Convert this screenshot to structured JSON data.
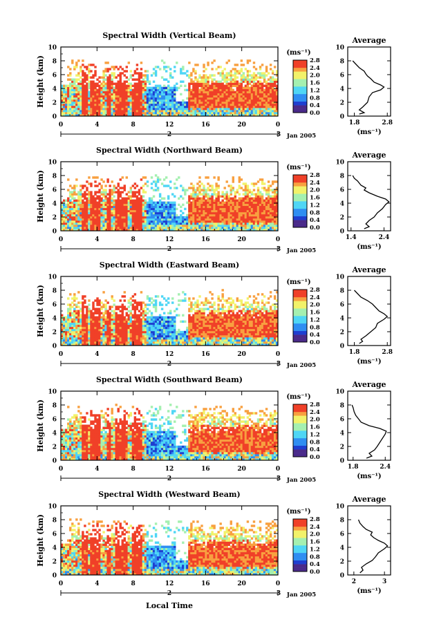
{
  "chart_data": {
    "type": "heatmap",
    "common": {
      "ylabel": "Height (km)",
      "ylim": [
        0,
        10
      ],
      "yticks": [
        "0",
        "2",
        "4",
        "6",
        "8",
        "10"
      ],
      "xlim": [
        0,
        24
      ],
      "xticks": [
        "0",
        "4",
        "8",
        "12",
        "16",
        "20",
        "0"
      ],
      "date_ticks": [
        "2",
        "3"
      ],
      "date_label": "Jan 2005",
      "xlabel": "Local Time",
      "colorbar_unit": "(ms⁻¹)",
      "colorbar_ticks": [
        "0.0",
        "0.4",
        "0.8",
        "1.2",
        "1.6",
        "2.0",
        "2.4",
        "2.8"
      ],
      "colorbar_range": [
        0,
        2.8
      ],
      "avg_title": "Average",
      "avg_unit": "(ms⁻¹)",
      "avg_yticks": [
        "0",
        "2",
        "4",
        "6",
        "8",
        "10"
      ],
      "colormap": [
        "#4a2a8a",
        "#1f3fd0",
        "#2f8ef2",
        "#4fd6f5",
        "#a4f0b0",
        "#f2f26a",
        "#f8a040",
        "#f04028"
      ]
    },
    "panels": [
      {
        "title": "Spectral Width (Vertical Beam)",
        "avg_xticks": [
          "1.8",
          "2.8"
        ],
        "avg_xlim": [
          1.6,
          2.9
        ],
        "avg_profile": [
          [
            0.3,
            1.95
          ],
          [
            0.5,
            2.1
          ],
          [
            0.9,
            1.95
          ],
          [
            1.3,
            2.05
          ],
          [
            2.0,
            2.2
          ],
          [
            2.8,
            2.25
          ],
          [
            3.4,
            2.35
          ],
          [
            3.8,
            2.6
          ],
          [
            4.2,
            2.7
          ],
          [
            4.5,
            2.6
          ],
          [
            4.9,
            2.4
          ],
          [
            5.4,
            2.3
          ],
          [
            5.8,
            2.2
          ],
          [
            6.1,
            2.15
          ],
          [
            6.5,
            2.1
          ],
          [
            7.0,
            1.95
          ],
          [
            7.5,
            1.85
          ],
          [
            8.0,
            1.75
          ]
        ]
      },
      {
        "title": "Spectral Width (Northward Beam)",
        "avg_xticks": [
          "1.4",
          "2.4"
        ],
        "avg_xlim": [
          1.3,
          2.6
        ],
        "avg_profile": [
          [
            0.3,
            1.8
          ],
          [
            0.6,
            1.95
          ],
          [
            1.0,
            1.85
          ],
          [
            1.5,
            1.95
          ],
          [
            2.0,
            2.1
          ],
          [
            2.6,
            2.2
          ],
          [
            3.2,
            2.35
          ],
          [
            3.8,
            2.45
          ],
          [
            4.2,
            2.55
          ],
          [
            4.6,
            2.45
          ],
          [
            5.0,
            2.2
          ],
          [
            5.5,
            1.95
          ],
          [
            5.9,
            1.8
          ],
          [
            6.2,
            1.85
          ],
          [
            6.6,
            1.7
          ],
          [
            7.2,
            1.6
          ],
          [
            7.6,
            1.5
          ],
          [
            8.0,
            1.45
          ]
        ]
      },
      {
        "title": "Spectral Width (Eastward Beam)",
        "avg_xticks": [
          "1.8",
          "2.8"
        ],
        "avg_xlim": [
          1.6,
          2.9
        ],
        "avg_profile": [
          [
            0.3,
            1.95
          ],
          [
            0.6,
            2.05
          ],
          [
            0.9,
            2.0
          ],
          [
            1.4,
            2.15
          ],
          [
            2.0,
            2.3
          ],
          [
            2.6,
            2.45
          ],
          [
            3.2,
            2.5
          ],
          [
            3.8,
            2.7
          ],
          [
            4.2,
            2.8
          ],
          [
            4.6,
            2.7
          ],
          [
            5.0,
            2.55
          ],
          [
            5.5,
            2.45
          ],
          [
            6.0,
            2.35
          ],
          [
            6.5,
            2.2
          ],
          [
            7.0,
            2.0
          ],
          [
            7.5,
            1.9
          ],
          [
            8.0,
            1.8
          ]
        ]
      },
      {
        "title": "Spectral Width (Southward Beam)",
        "avg_xticks": [
          "1.8",
          "2.4"
        ],
        "avg_xlim": [
          1.7,
          2.5
        ],
        "avg_profile": [
          [
            0.3,
            2.05
          ],
          [
            0.6,
            2.15
          ],
          [
            1.0,
            2.1
          ],
          [
            1.5,
            2.2
          ],
          [
            2.0,
            2.25
          ],
          [
            2.6,
            2.3
          ],
          [
            3.2,
            2.35
          ],
          [
            3.8,
            2.4
          ],
          [
            4.2,
            2.42
          ],
          [
            4.6,
            2.3
          ],
          [
            5.0,
            2.1
          ],
          [
            5.5,
            1.95
          ],
          [
            6.0,
            1.9
          ],
          [
            6.5,
            1.85
          ],
          [
            7.0,
            1.82
          ],
          [
            7.6,
            1.8
          ],
          [
            8.0,
            1.78
          ]
        ]
      },
      {
        "title": "Spectral Width (Westward Beam)",
        "avg_xticks": [
          "2",
          "3"
        ],
        "avg_xlim": [
          1.8,
          3.2
        ],
        "avg_profile": [
          [
            0.3,
            2.2
          ],
          [
            0.7,
            2.3
          ],
          [
            1.1,
            2.25
          ],
          [
            1.6,
            2.4
          ],
          [
            2.1,
            2.6
          ],
          [
            2.6,
            2.7
          ],
          [
            3.2,
            2.8
          ],
          [
            3.8,
            3.0
          ],
          [
            4.2,
            3.1
          ],
          [
            4.6,
            3.0
          ],
          [
            5.0,
            2.8
          ],
          [
            5.4,
            2.65
          ],
          [
            5.8,
            2.55
          ],
          [
            6.2,
            2.6
          ],
          [
            6.6,
            2.4
          ],
          [
            7.0,
            2.3
          ],
          [
            7.5,
            2.2
          ],
          [
            8.0,
            2.15
          ]
        ]
      }
    ]
  }
}
